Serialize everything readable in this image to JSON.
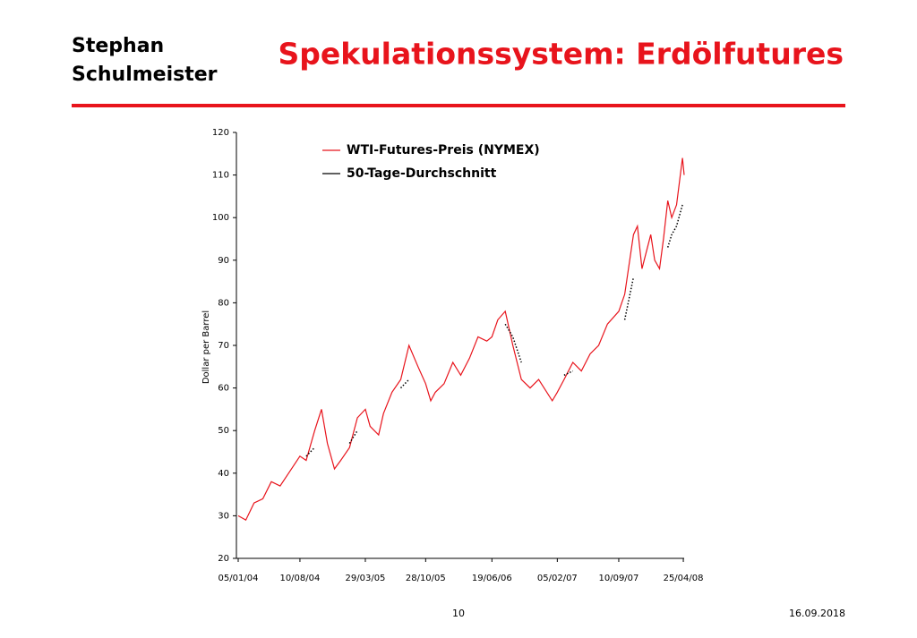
{
  "header": {
    "author": [
      "Stephan",
      "Schulmeister"
    ],
    "title": "Spekulationssystem: Erdölfutures"
  },
  "footer": {
    "page": "10",
    "date": "16.09.2018"
  },
  "chart_data": {
    "type": "line",
    "y_label": "Dollar per Barrel",
    "x": [
      "05/01/04",
      "01/02/04",
      "01/03/04",
      "01/04/04",
      "01/05/04",
      "01/06/04",
      "01/07/04",
      "10/08/04",
      "01/09/04",
      "01/10/04",
      "25/10/04",
      "15/11/04",
      "10/12/04",
      "01/01/05",
      "01/02/05",
      "01/03/05",
      "29/03/05",
      "15/04/05",
      "15/05/05",
      "01/06/05",
      "01/07/05",
      "01/08/05",
      "30/08/05",
      "01/10/05",
      "28/10/05",
      "15/11/05",
      "01/12/05",
      "01/01/06",
      "01/02/06",
      "01/03/06",
      "01/04/06",
      "01/05/06",
      "01/06/06",
      "19/06/06",
      "10/07/06",
      "05/08/06",
      "01/09/06",
      "01/10/06",
      "01/11/06",
      "01/12/06",
      "18/01/07",
      "05/02/07",
      "01/03/07",
      "01/04/07",
      "01/05/07",
      "01/06/07",
      "01/07/07",
      "01/08/07",
      "10/09/07",
      "01/10/07",
      "01/11/07",
      "15/11/07",
      "01/12/07",
      "01/01/08",
      "15/01/08",
      "01/02/08",
      "15/02/08",
      "01/03/08",
      "15/03/08",
      "01/04/08",
      "22/04/08",
      "28/04/08"
    ],
    "series": [
      {
        "name": "WTI-Futures-Preis (NYMEX)",
        "color": "#e8141c",
        "style": "solid",
        "values": [
          30,
          29,
          33,
          34,
          38,
          37,
          40,
          44,
          43,
          50,
          55,
          47,
          41,
          43,
          46,
          53,
          55,
          51,
          49,
          54,
          59,
          62,
          70,
          65,
          61,
          57,
          59,
          61,
          66,
          63,
          67,
          72,
          71,
          72,
          76,
          78,
          70,
          62,
          60,
          62,
          57,
          59,
          62,
          66,
          64,
          68,
          70,
          75,
          78,
          82,
          96,
          98,
          88,
          96,
          90,
          88,
          95,
          104,
          100,
          103,
          114,
          110
        ]
      },
      {
        "name": "50-Tage-Durchschnitt",
        "color": "#000000",
        "style": "dotted",
        "values": [
          null,
          null,
          null,
          null,
          null,
          null,
          null,
          null,
          44,
          46,
          null,
          null,
          null,
          null,
          47,
          50,
          null,
          null,
          null,
          null,
          null,
          60,
          62,
          null,
          null,
          null,
          null,
          null,
          null,
          null,
          null,
          null,
          null,
          null,
          null,
          75,
          72,
          66,
          null,
          null,
          null,
          null,
          63,
          64,
          null,
          null,
          null,
          null,
          null,
          76,
          86,
          null,
          null,
          null,
          null,
          null,
          null,
          93,
          96,
          98,
          103,
          null
        ]
      }
    ],
    "xlim": [
      "05/01/04",
      "28/04/08"
    ],
    "xticks": [
      "05/01/04",
      "10/08/04",
      "29/03/05",
      "28/10/05",
      "19/06/06",
      "05/02/07",
      "10/09/07",
      "25/04/08"
    ],
    "ylim": [
      20,
      120
    ],
    "yticks": [
      20,
      30,
      40,
      50,
      60,
      70,
      80,
      90,
      100,
      110,
      120
    ]
  }
}
